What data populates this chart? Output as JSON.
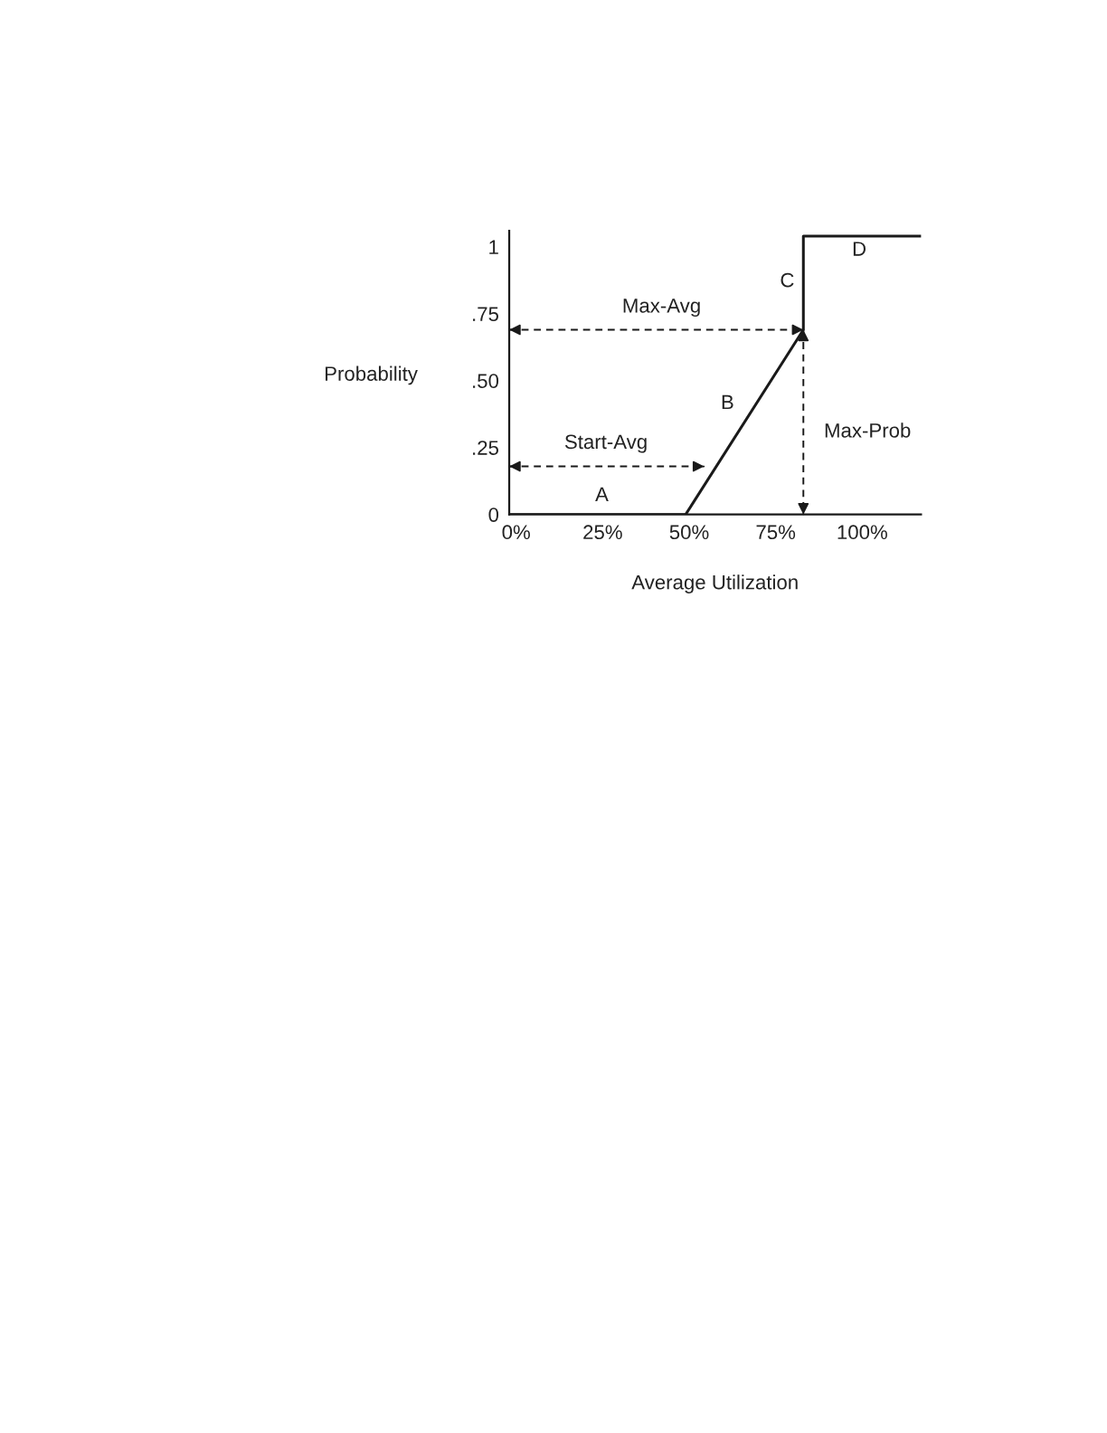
{
  "chart_data": {
    "type": "line",
    "xlabel": "Average Utilization",
    "ylabel": "Probability",
    "xlim": [
      -2,
      117
    ],
    "ylim": [
      0,
      1.06
    ],
    "xticks": [
      {
        "value": 0,
        "label": "0%"
      },
      {
        "value": 25,
        "label": "25%"
      },
      {
        "value": 50,
        "label": "50%"
      },
      {
        "value": 75,
        "label": "75%"
      },
      {
        "value": 100,
        "label": "100%"
      }
    ],
    "yticks": [
      0,
      {
        "value": 0.25,
        "label": ".25"
      },
      {
        "value": 0.5,
        "label": ".50"
      },
      {
        "value": 0.75,
        "label": ".75"
      },
      1
    ],
    "grid": false,
    "legend": false,
    "marker": "none",
    "line_style": "solid",
    "series": [
      {
        "color": "#1a1a1a",
        "x": [
          -2,
          49,
          83,
          83,
          117
        ],
        "values": [
          0,
          0,
          0.69,
          1.04,
          1.04
        ]
      }
    ],
    "annotations": [
      "A",
      "B",
      "C",
      "D",
      "Max-Avg",
      "Start-Avg",
      "Max-Prob"
    ]
  }
}
